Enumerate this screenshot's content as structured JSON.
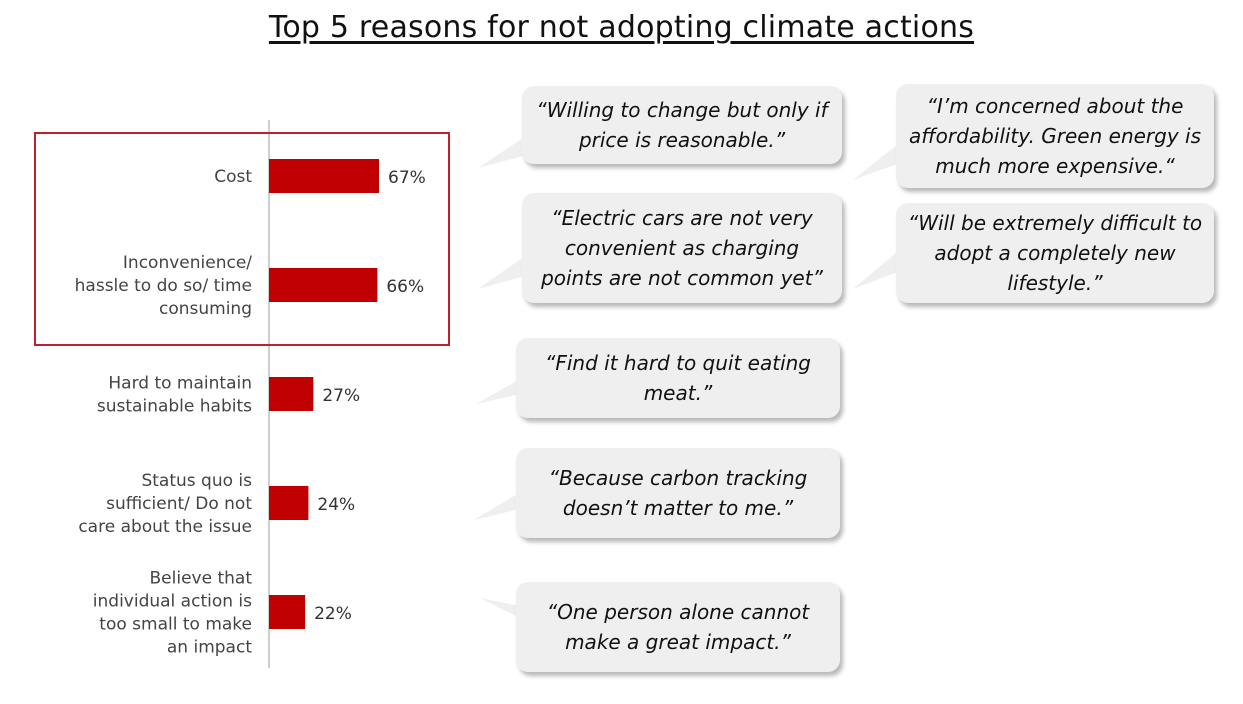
{
  "title": "Top 5 reasons for not adopting climate actions",
  "chart_data": {
    "type": "bar",
    "orientation": "horizontal",
    "categories": [
      "Cost",
      "Inconvenience/ hassle to do so/ time consuming",
      "Hard to maintain sustainable habits",
      "Status quo is sufficient/ Do not care about the issue",
      "Believe that individual action is too small to make an impact"
    ],
    "category_lines": [
      [
        "Cost"
      ],
      [
        "Inconvenience/",
        "hassle to do so/ time",
        "consuming"
      ],
      [
        "Hard to maintain",
        "sustainable habits"
      ],
      [
        "Status quo is",
        "sufficient/ Do not",
        "care about the issue"
      ],
      [
        "Believe that",
        "individual action is",
        "too small to make",
        "an impact"
      ]
    ],
    "values": [
      67,
      66,
      27,
      24,
      22
    ],
    "value_labels": [
      "67%",
      "66%",
      "27%",
      "24%",
      "22%"
    ],
    "unit": "%",
    "highlighted_categories": [
      0,
      1
    ],
    "bar_color": "#c00000",
    "highlight_box_color": "#c0202a",
    "axis_color": "#bfbfbf",
    "grid": false,
    "legend": "none"
  },
  "quotes": [
    "“Willing to change but only if price is reasonable.”",
    "“I’m concerned about the affordability. Green energy is much more expensive.“",
    "“Electric cars are not very convenient as charging points are not common yet”",
    "“Will be extremely difficult to adopt a completely new lifestyle.”",
    "“Find it hard to quit eating meat.”",
    "“Because carbon tracking doesn’t matter to me.”",
    "“One person alone cannot make a great impact.”"
  ]
}
